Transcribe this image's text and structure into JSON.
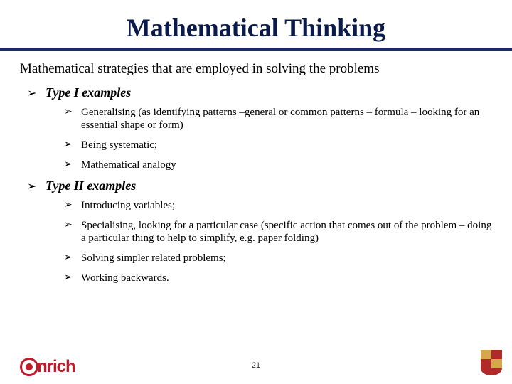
{
  "title": "Mathematical Thinking",
  "subtitle": "Mathematical strategies that are employed in solving the problems",
  "sections": [
    {
      "label": "Type I examples",
      "items": [
        "Generalising (as identifying patterns –general or common patterns – formula – looking for an essential shape or form)",
        "Being systematic;",
        "Mathematical analogy"
      ]
    },
    {
      "label": "Type II examples",
      "items": [
        "Introducing variables;",
        "Specialising, looking for a particular case (specific action that comes out of the problem – doing a particular thing to help to simplify, e.g. paper folding)",
        "Solving simpler related problems;",
        "Working backwards."
      ]
    }
  ],
  "logo_left_text": "nrich",
  "page_number": "21",
  "colors": {
    "title": "#0a1a4a",
    "rule": "#1a2a6a",
    "nrich": "#c11a2b"
  }
}
